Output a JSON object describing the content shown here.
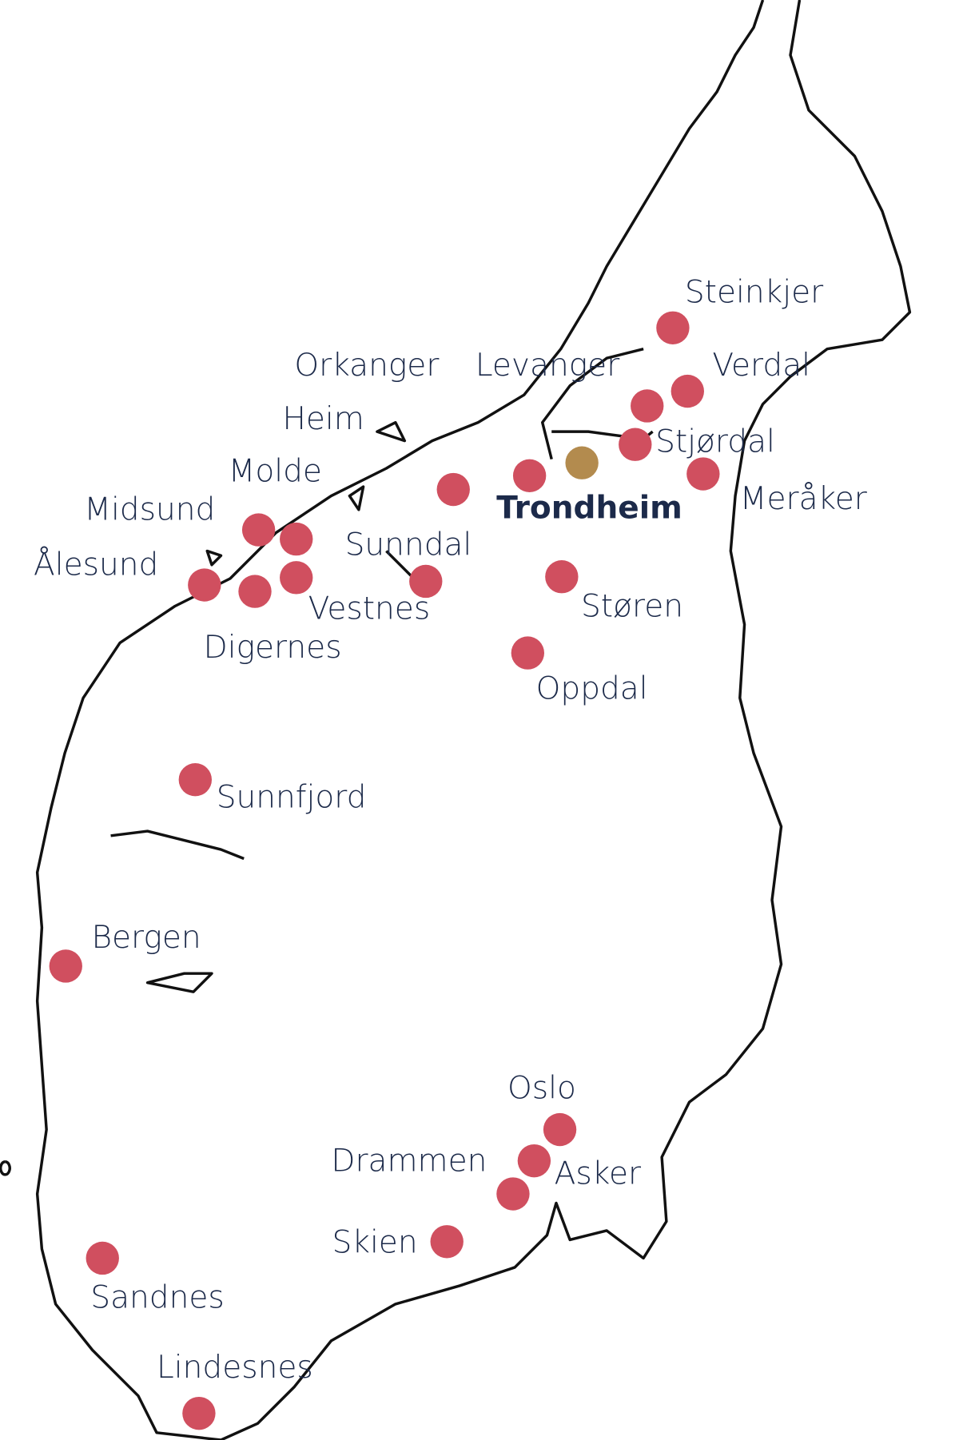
{
  "cities": [
    {
      "label": "Steinkjer"
    },
    {
      "label": "Verdal"
    },
    {
      "label": "Levanger"
    },
    {
      "label": "Orkanger"
    },
    {
      "label": "Heim"
    },
    {
      "label": "Stjørdal"
    },
    {
      "label": "Meråker"
    },
    {
      "label": "Trondheim"
    },
    {
      "label": "Molde"
    },
    {
      "label": "Midsund"
    },
    {
      "label": "Ålesund"
    },
    {
      "label": "Digernes"
    },
    {
      "label": "Vestnes"
    },
    {
      "label": "Sunndal"
    },
    {
      "label": "Støren"
    },
    {
      "label": "Oppdal"
    },
    {
      "label": "Sunnfjord"
    },
    {
      "label": "Bergen"
    },
    {
      "label": "Oslo"
    },
    {
      "label": "Drammen"
    },
    {
      "label": "Asker"
    },
    {
      "label": "Skien"
    },
    {
      "label": "Sandnes"
    },
    {
      "label": "Lindesnes"
    }
  ]
}
